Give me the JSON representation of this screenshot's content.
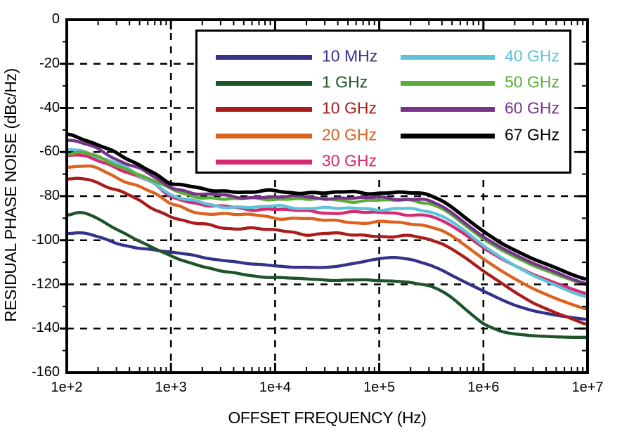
{
  "chart_data": {
    "type": "line",
    "title": "",
    "xlabel": "OFFSET FREQUENCY  (Hz)",
    "ylabel": "RESIDUAL PHASE NOISE (dBc/Hz)",
    "x_scale": "log",
    "xlim": [
      100,
      10000000
    ],
    "ylim": [
      -160,
      0
    ],
    "x_tick_labels": [
      "1e+2",
      "1e+3",
      "1e+4",
      "1e+5",
      "1e+6",
      "1e+7"
    ],
    "y_tick_labels": [
      "0",
      "-20",
      "-40",
      "-60",
      "-80",
      "-100",
      "-120",
      "-140",
      "-160"
    ],
    "grid": "dashed black gridlines at each decade and every 20 dB",
    "legend_position": "top-center box, two columns",
    "frequencies_hz": [
      100,
      130,
      160,
      200,
      300,
      500,
      700,
      1000,
      1500,
      2000,
      3000,
      5000,
      7000,
      10000,
      15000,
      20000,
      30000,
      50000,
      70000,
      100000,
      150000,
      200000,
      300000,
      400000,
      500000,
      700000,
      1000000,
      1500000,
      2000000,
      3000000,
      5000000,
      7000000,
      10000000
    ],
    "series": [
      {
        "name": "10 MHz",
        "color": "#34338a",
        "values": [
          -97,
          -96.5,
          -97,
          -98.5,
          -101.5,
          -103.5,
          -104.5,
          -105.5,
          -106.5,
          -107.5,
          -109,
          -110.5,
          -111,
          -111.5,
          -112,
          -112.5,
          -112.5,
          -111,
          -109.5,
          -108.3,
          -108,
          -108.5,
          -111,
          -113.5,
          -116,
          -119.5,
          -123,
          -127,
          -129.5,
          -132,
          -134,
          -135,
          -136
        ]
      },
      {
        "name": "1 GHz",
        "color": "#1f5329",
        "values": [
          -89,
          -87.5,
          -88,
          -90,
          -95,
          -100.5,
          -104,
          -107,
          -110,
          -112,
          -114,
          -115.5,
          -116.3,
          -117,
          -117.3,
          -117.5,
          -118,
          -118,
          -118.2,
          -118.3,
          -118.5,
          -119,
          -120.5,
          -123,
          -126,
          -132,
          -138,
          -141.5,
          -142.5,
          -143.3,
          -143.8,
          -144,
          -144
        ]
      },
      {
        "name": "10 GHz",
        "color": "#a91d1b",
        "values": [
          -72,
          -71.5,
          -72,
          -74,
          -77.5,
          -82,
          -85.5,
          -89.5,
          -92,
          -93,
          -94,
          -94.5,
          -95,
          -95.5,
          -96.5,
          -97,
          -97,
          -97.5,
          -97.8,
          -98,
          -98,
          -98.5,
          -99.5,
          -101.5,
          -104,
          -108.5,
          -114,
          -119.5,
          -123.5,
          -128.5,
          -133,
          -135.5,
          -138.5
        ]
      },
      {
        "name": "20 GHz",
        "color": "#dc6220",
        "values": [
          -67,
          -66,
          -66.5,
          -68,
          -71.5,
          -75.5,
          -78.5,
          -84,
          -86.5,
          -87.5,
          -88,
          -88.5,
          -89,
          -89.5,
          -90,
          -90.5,
          -91,
          -91.5,
          -91.8,
          -92,
          -92,
          -92.5,
          -93.5,
          -95.5,
          -98,
          -103,
          -108.5,
          -114,
          -117.5,
          -122,
          -126.5,
          -129,
          -131.5
        ]
      },
      {
        "name": "30 GHz",
        "color": "#d62a72",
        "values": [
          -62.5,
          -61.5,
          -62,
          -63.5,
          -67,
          -71.5,
          -75,
          -80,
          -82.5,
          -84,
          -85,
          -85.5,
          -85.8,
          -86,
          -86.5,
          -87,
          -87.2,
          -87.5,
          -87.5,
          -87.5,
          -87.7,
          -88,
          -89,
          -91,
          -93.5,
          -98,
          -103.5,
          -108.5,
          -111.5,
          -115.5,
          -119.5,
          -122,
          -124.5
        ]
      },
      {
        "name": "40 GHz",
        "color": "#5fc2da",
        "values": [
          -58.5,
          -59,
          -60,
          -62,
          -65.5,
          -70.5,
          -74,
          -79.5,
          -82,
          -83.5,
          -84.5,
          -85,
          -85,
          -84.8,
          -85,
          -85.2,
          -85.4,
          -85.8,
          -85.7,
          -85.6,
          -85.8,
          -86,
          -87,
          -89,
          -91.5,
          -96.5,
          -102.5,
          -108,
          -111.5,
          -116,
          -120.5,
          -123.5,
          -126
        ]
      },
      {
        "name": "50 GHz",
        "color": "#5aad37",
        "values": [
          -60.5,
          -60,
          -61,
          -62.5,
          -66,
          -70,
          -73,
          -77.5,
          -79.5,
          -80.5,
          -81,
          -81.5,
          -81.3,
          -81,
          -81.2,
          -81.4,
          -81.6,
          -82,
          -82,
          -82,
          -82,
          -82,
          -83,
          -85.5,
          -88.5,
          -94,
          -99.5,
          -104.5,
          -107.5,
          -111.5,
          -115.5,
          -118,
          -120.5
        ]
      },
      {
        "name": "60 GHz",
        "color": "#763389",
        "values": [
          -55,
          -55.5,
          -56.5,
          -58.5,
          -63,
          -68,
          -71.5,
          -76,
          -78,
          -79,
          -80,
          -80.5,
          -80.4,
          -80.3,
          -80.4,
          -80.5,
          -80.7,
          -81,
          -80.9,
          -80.8,
          -80.9,
          -81,
          -82,
          -84.5,
          -87.5,
          -93,
          -98.5,
          -103.5,
          -106.5,
          -110.5,
          -114.5,
          -117.5,
          -120
        ]
      },
      {
        "name": "67 GHz",
        "color": "#000000",
        "values": [
          -52,
          -53,
          -54.5,
          -56.5,
          -61,
          -66,
          -69.5,
          -74,
          -76,
          -77,
          -77.5,
          -78,
          -78,
          -78,
          -78.2,
          -78.3,
          -78.4,
          -78.5,
          -78.4,
          -78.3,
          -78.4,
          -78.5,
          -79.5,
          -82,
          -85,
          -90.5,
          -96,
          -101.5,
          -104.5,
          -108.5,
          -112.5,
          -115.5,
          -118
        ]
      }
    ]
  }
}
